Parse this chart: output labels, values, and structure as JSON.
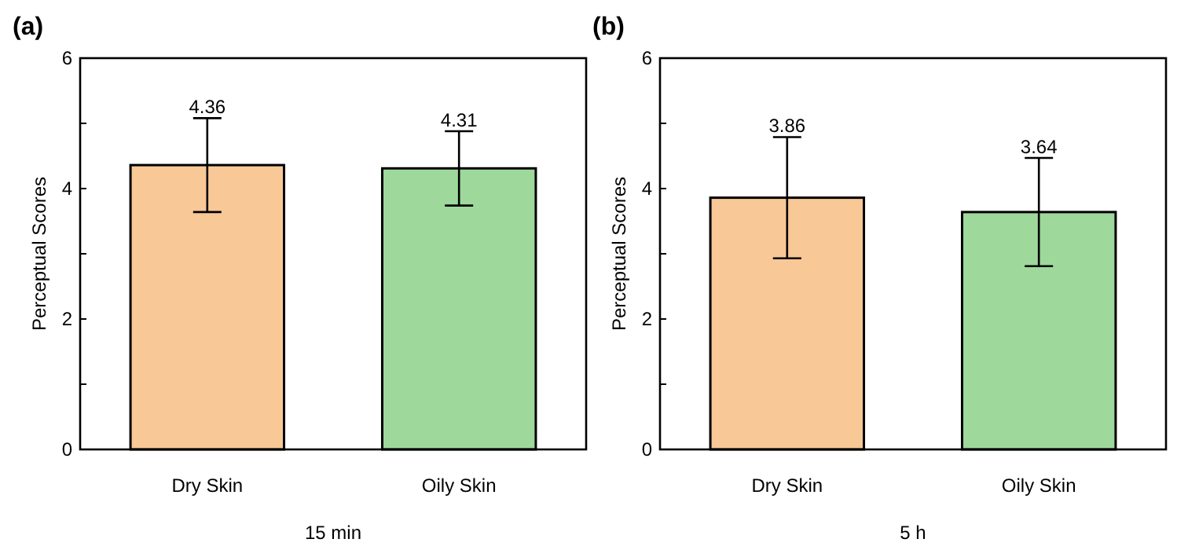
{
  "chart_data": [
    {
      "type": "bar",
      "title": "(a)",
      "xlabel": "15 min",
      "ylabel": "Perceptual Scores",
      "categories": [
        "Dry Skin",
        "Oily Skin"
      ],
      "values": [
        4.36,
        4.31
      ],
      "annotations": [
        {
          "text": "4.36",
          "x": "Dry Skin",
          "y": 5.08
        },
        {
          "text": "4.31",
          "x": "Oily Skin",
          "y": 4.88
        }
      ],
      "colors": [
        "#f9c897",
        "#9ed89b"
      ],
      "errors": [
        0.72,
        0.57
      ],
      "ylim": [
        0,
        6
      ],
      "yticks": [
        0,
        {
          "value": 1,
          "label": null
        },
        2,
        {
          "value": 3,
          "label": null
        },
        4,
        {
          "value": 5,
          "label": null
        },
        6
      ],
      "grid": false
    },
    {
      "type": "bar",
      "title": "(b)",
      "xlabel": "5 h",
      "ylabel": "Perceptual Scores",
      "categories": [
        "Dry Skin",
        "Oily Skin"
      ],
      "values": [
        3.86,
        3.64
      ],
      "annotations": [
        {
          "text": "3.86",
          "x": "Dry Skin",
          "y": 4.79
        },
        {
          "text": "3.64",
          "x": "Oily Skin",
          "y": 4.47
        }
      ],
      "colors": [
        "#f9c897",
        "#9ed89b"
      ],
      "errors": [
        0.93,
        0.83
      ],
      "ylim": [
        0,
        6
      ],
      "yticks": [
        0,
        {
          "value": 1,
          "label": null
        },
        2,
        {
          "value": 3,
          "label": null
        },
        4,
        {
          "value": 5,
          "label": null
        },
        6
      ],
      "grid": false
    }
  ]
}
